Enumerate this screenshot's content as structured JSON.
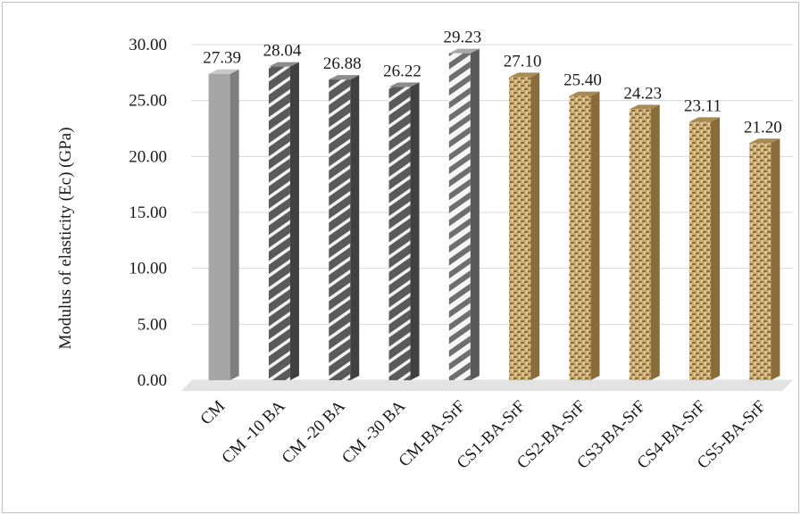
{
  "chart_data": {
    "type": "bar",
    "title": "",
    "xlabel": "",
    "ylabel": "Modulus of elasticity (Ec) (GPa)",
    "ylim": [
      0,
      30
    ],
    "yticks": [
      "0.00",
      "5.00",
      "10.00",
      "15.00",
      "20.00",
      "25.00",
      "30.00"
    ],
    "grid": true,
    "legend": "none",
    "categories": [
      "CM",
      "CM -10 BA",
      "CM -20 BA",
      "CM -30 BA",
      "CM-BA-SrF",
      "CS1-BA-SrF",
      "CS2-BA-SrF",
      "CS3-BA-SrF",
      "CS4-BA-SrF",
      "CS5-BA-SrF"
    ],
    "values": [
      27.39,
      28.04,
      26.88,
      26.22,
      29.23,
      27.1,
      25.4,
      24.23,
      23.11,
      21.2
    ],
    "data_labels": [
      "27.39",
      "28.04",
      "26.88",
      "26.22",
      "29.23",
      "27.10",
      "25.40",
      "24.23",
      "23.11",
      "21.20"
    ],
    "bar_styles": [
      "solid-gray",
      "dark-diagonal",
      "dark-diagonal",
      "dark-diagonal",
      "light-diagonal",
      "burlap",
      "burlap",
      "burlap",
      "burlap",
      "burlap"
    ],
    "colors": {
      "solid_gray": "#a6a6a6",
      "dark_hatch": "#595959",
      "light_hatch": "#808080",
      "burlap": "#c8a96e",
      "gridline": "#d9d9d9"
    }
  }
}
